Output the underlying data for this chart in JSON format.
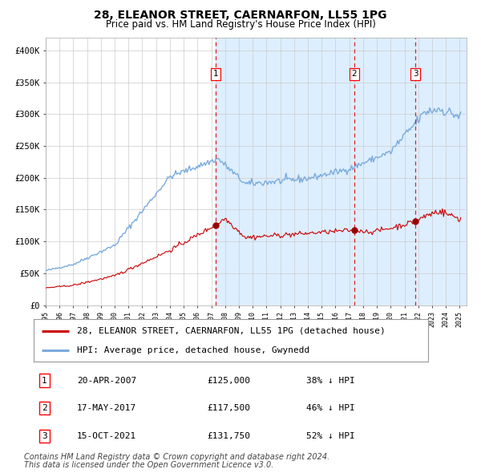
{
  "title": "28, ELEANOR STREET, CAERNARFON, LL55 1PG",
  "subtitle": "Price paid vs. HM Land Registry's House Price Index (HPI)",
  "hpi_label": "HPI: Average price, detached house, Gwynedd",
  "price_label": "28, ELEANOR STREET, CAERNARFON, LL55 1PG (detached house)",
  "footer1": "Contains HM Land Registry data © Crown copyright and database right 2024.",
  "footer2": "This data is licensed under the Open Government Licence v3.0.",
  "sales": [
    {
      "num": 1,
      "date": "20-APR-2007",
      "price": 125000,
      "pct": "38%",
      "x_year": 2007.3,
      "marker_y": 125000
    },
    {
      "num": 2,
      "date": "17-MAY-2017",
      "price": 117500,
      "pct": "46%",
      "x_year": 2017.37,
      "marker_y": 117500
    },
    {
      "num": 3,
      "date": "15-OCT-2021",
      "price": 131750,
      "pct": "52%",
      "x_year": 2021.79,
      "marker_y": 131750
    }
  ],
  "ylim": [
    0,
    420000
  ],
  "xlim_start": 1995.0,
  "xlim_end": 2025.5,
  "plot_bg": "#ffffff",
  "grid_color": "#cccccc",
  "red_line_color": "#cc0000",
  "blue_line_color": "#7aabde",
  "blue_fill_color": "#ddeeff",
  "dashed_line_color": "#dd2222",
  "marker_color": "#990000",
  "title_fontsize": 10,
  "subtitle_fontsize": 8.5,
  "axis_fontsize": 7.5,
  "legend_fontsize": 8,
  "table_fontsize": 8,
  "footer_fontsize": 7
}
